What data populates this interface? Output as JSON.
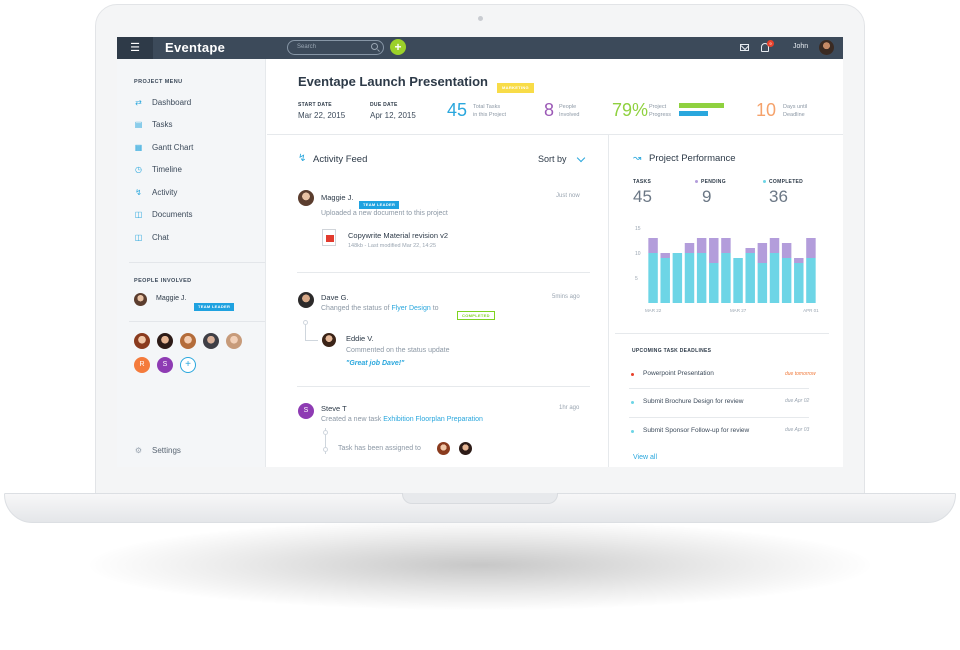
{
  "topbar": {
    "menu_icon": "hamburger-icon",
    "logo": "Eventape",
    "search_placeholder": "Search",
    "add_label": "+",
    "notification_count": "9",
    "user_name": "John"
  },
  "sidebar": {
    "project_menu_heading": "PROJECT MENU",
    "items": [
      {
        "label": "Dashboard",
        "icon": "shuffle-icon"
      },
      {
        "label": "Tasks",
        "icon": "clipboard-icon"
      },
      {
        "label": "Gantt Chart",
        "icon": "calendar-icon"
      },
      {
        "label": "Timeline",
        "icon": "clock-icon"
      },
      {
        "label": "Activity",
        "icon": "lightning-icon"
      },
      {
        "label": "Documents",
        "icon": "documents-icon"
      },
      {
        "label": "Chat",
        "icon": "chat-icon"
      }
    ],
    "people_heading": "PEOPLE INVOLVED",
    "lead": {
      "name": "Maggie J.",
      "tag": "TEAM LEADER"
    },
    "avatar_letters": [
      "R",
      "S"
    ],
    "add_person": "+",
    "settings_label": "Settings"
  },
  "project": {
    "title": "Eventape Launch Presentation",
    "tag": "MARKETING",
    "start_label": "START DATE",
    "start_value": "Mar 22, 2015",
    "due_label": "DUE DATE",
    "due_value": "Apr 12, 2015",
    "stats": [
      {
        "value": "45",
        "label1": "Total Tasks",
        "label2": "in this Project",
        "color": "#2aa7dd"
      },
      {
        "value": "8",
        "label1": "People",
        "label2": "Involved",
        "color": "#9b59b6"
      },
      {
        "value": "79%",
        "label1": "Project",
        "label2": "Progress",
        "color": "#8fd13f"
      },
      {
        "value": "10",
        "label1": "Days until",
        "label2": "Deadline",
        "color": "#f5a26b"
      }
    ],
    "progress_fraction": 0.79
  },
  "feed": {
    "title": "Activity Feed",
    "sort_label": "Sort by",
    "entries": [
      {
        "name": "Maggie J.",
        "tag": "TEAM LEADER",
        "time": "Just now",
        "text": "Uploaded a new document to this project",
        "file_name": "Copywrite Material revision v2",
        "file_meta": "148kb - Last modified Mar 22, 14:25"
      },
      {
        "name": "Dave G.",
        "time": "5mins ago",
        "text_pre": "Changed the status of",
        "link": "Flyer Design",
        "text_post": "to",
        "status": "COMPLETED",
        "reply_name": "Eddie V.",
        "reply_text": "Commented on the status update",
        "reply_quote": "\"Great job Dave!\""
      },
      {
        "name": "Steve T",
        "initial": "S",
        "time": "1hr ago",
        "text_pre": "Created a new task",
        "link": "Exhibition Floorplan Preparation",
        "sub_text": "Task has been assigned to"
      }
    ]
  },
  "performance": {
    "title": "Project Performance",
    "tasks_label": "TASKS",
    "tasks_value": "45",
    "pending_label": "PENDING",
    "pending_value": "9",
    "completed_label": "COMPLETED",
    "completed_value": "36",
    "pending_color": "#b39ddb",
    "completed_color": "#6dd5e6"
  },
  "chart_data": {
    "type": "bar",
    "stacked": true,
    "categories": [
      "Mar 22",
      "",
      "",
      "",
      "",
      "",
      "",
      "Mar 27",
      "",
      "",
      "",
      "",
      "",
      "Apr 01"
    ],
    "x_tick_labels": [
      "MAR 22",
      "MAR 27",
      "APR 01"
    ],
    "y_tick_labels": [
      "5",
      "10",
      "15"
    ],
    "ylim": [
      0,
      16
    ],
    "series": [
      {
        "name": "COMPLETED",
        "values": [
          10,
          9,
          10,
          10,
          10,
          8,
          10,
          9,
          10,
          8,
          10,
          9,
          8,
          9
        ]
      },
      {
        "name": "PENDING",
        "values": [
          3,
          1,
          0,
          2,
          3,
          5,
          3,
          0,
          1,
          4,
          3,
          3,
          1,
          4
        ]
      }
    ]
  },
  "deadlines": {
    "heading": "UPCOMING TASK DEADLINES",
    "items": [
      {
        "label": "Powerpoint Presentation",
        "due": "due tomorrow",
        "color": "#e8412b",
        "due_color": "#f07a3c"
      },
      {
        "label": "Submit Brochure Design for review",
        "due": "due Apr 02",
        "color": "#6dd5e6",
        "due_color": "#9aa5b1"
      },
      {
        "label": "Submit Sponsor Follow-up for review",
        "due": "due Apr 03",
        "color": "#6dd5e6",
        "due_color": "#9aa5b1"
      }
    ],
    "view_all": "View all"
  }
}
